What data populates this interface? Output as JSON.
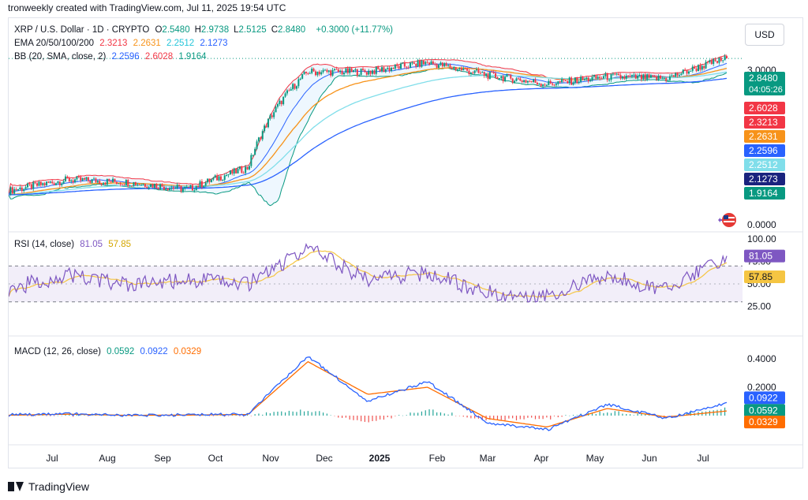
{
  "header": {
    "text": "tronweekly created with TradingView.com, Jul 11, 2025 19:54 UTC"
  },
  "currency_button": "USD",
  "legend": {
    "symbol": "XRP / U.S. Dollar · 1D · CRYPTO",
    "ohlc": [
      {
        "label": "O",
        "value": "2.5480"
      },
      {
        "label": "H",
        "value": "2.9738"
      },
      {
        "label": "L",
        "value": "2.5125"
      },
      {
        "label": "C",
        "value": "2.8480"
      }
    ],
    "change": "+0.3000 (+11.77%)",
    "ema_label": "EMA 20/50/100/200",
    "ema_values": [
      "2.3213",
      "2.2631",
      "2.2512",
      "2.1273"
    ],
    "bb_label": "BB (20, SMA, close, 2)",
    "bb_values": [
      "2.2596",
      "2.6028",
      "1.9164"
    ],
    "rsi_label": "RSI (14, close)",
    "rsi_values": [
      "81.05",
      "57.85"
    ],
    "macd_label": "MACD (12, 26, close)",
    "macd_values": [
      "0.0592",
      "0.0922",
      "0.0329"
    ]
  },
  "colors": {
    "up": "#089981",
    "down": "#f23645",
    "ema20": "#f23645",
    "ema50": "#f7931a",
    "ema100": "#80deea",
    "ema200": "#2962ff",
    "bb_basis": "#2962ff",
    "bb_upper": "#f23645",
    "bb_lower": "#089981",
    "rsi": "#7e57c2",
    "rsi_ma": "#f5c542",
    "macd": "#2962ff",
    "signal": "#ff6d00"
  },
  "price_badges": [
    {
      "text": "2.8480",
      "sub": "04:05:26",
      "color": "#089981"
    },
    {
      "text": "2.6028",
      "color": "#f23645"
    },
    {
      "text": "2.3213",
      "color": "#f23645"
    },
    {
      "text": "2.2631",
      "color": "#f7931a"
    },
    {
      "text": "2.2596",
      "color": "#2962ff"
    },
    {
      "text": "2.2512",
      "color": "#80deea"
    },
    {
      "text": "2.1273",
      "color": "#1a237e"
    },
    {
      "text": "1.9164",
      "color": "#089981"
    }
  ],
  "rsi_badges": [
    {
      "text": "81.05",
      "color": "#7e57c2"
    },
    {
      "text": "57.85",
      "color": "#f5c542"
    }
  ],
  "macd_badges": [
    {
      "text": "0.0922",
      "color": "#2962ff"
    },
    {
      "text": "0.0592",
      "color": "#089981"
    },
    {
      "text": "0.0329",
      "color": "#ff6d00"
    }
  ],
  "chart_data": {
    "type": "line",
    "ticker": "XRP / U.S. Dollar",
    "timeframe": "1D",
    "x_labels": [
      "Jul",
      "Aug",
      "Sep",
      "Oct",
      "Nov",
      "Dec",
      "2025",
      "Feb",
      "Mar",
      "Apr",
      "May",
      "Jun",
      "Jul"
    ],
    "price_axis_ticks": [
      "3.0000",
      "0.0000"
    ],
    "rsi_axis_ticks": [
      "100.00",
      "75.00",
      "50.00",
      "25.00"
    ],
    "macd_axis_ticks": [
      "0.4000",
      "0.2000"
    ],
    "price": {
      "x": [
        "Jul",
        "Aug",
        "Sep",
        "Oct",
        "Nov",
        "Dec",
        "2025",
        "Feb",
        "Mar",
        "Apr",
        "May",
        "Jun",
        "Jul"
      ],
      "close": [
        0.52,
        0.6,
        0.58,
        0.53,
        0.7,
        2.4,
        2.4,
        2.7,
        2.3,
        2.05,
        2.25,
        2.2,
        2.85
      ]
    },
    "rsi": {
      "x": [
        "Jul",
        "Aug",
        "Sep",
        "Oct",
        "Nov",
        "Dec",
        "2025",
        "Feb",
        "Mar",
        "Apr",
        "May",
        "Jun",
        "Jul"
      ],
      "values": [
        45,
        60,
        48,
        55,
        50,
        90,
        55,
        62,
        40,
        38,
        58,
        44,
        81.05
      ],
      "overbought": 70,
      "oversold": 30
    },
    "macd": {
      "x": [
        "Jul",
        "Aug",
        "Sep",
        "Oct",
        "Nov",
        "Dec",
        "2025",
        "Feb",
        "Mar",
        "Apr",
        "May",
        "Jun",
        "Jul"
      ],
      "macd": [
        0.005,
        0.012,
        0.0,
        0.005,
        0.01,
        0.42,
        0.1,
        0.24,
        -0.05,
        -0.1,
        0.08,
        -0.02,
        0.0922
      ],
      "signal": [
        0.003,
        0.01,
        0.002,
        0.004,
        0.008,
        0.38,
        0.15,
        0.2,
        -0.02,
        -0.08,
        0.05,
        -0.01,
        0.0329
      ]
    },
    "grid": false,
    "legend_position": "top-left"
  },
  "footer": {
    "brand": "TradingView"
  }
}
